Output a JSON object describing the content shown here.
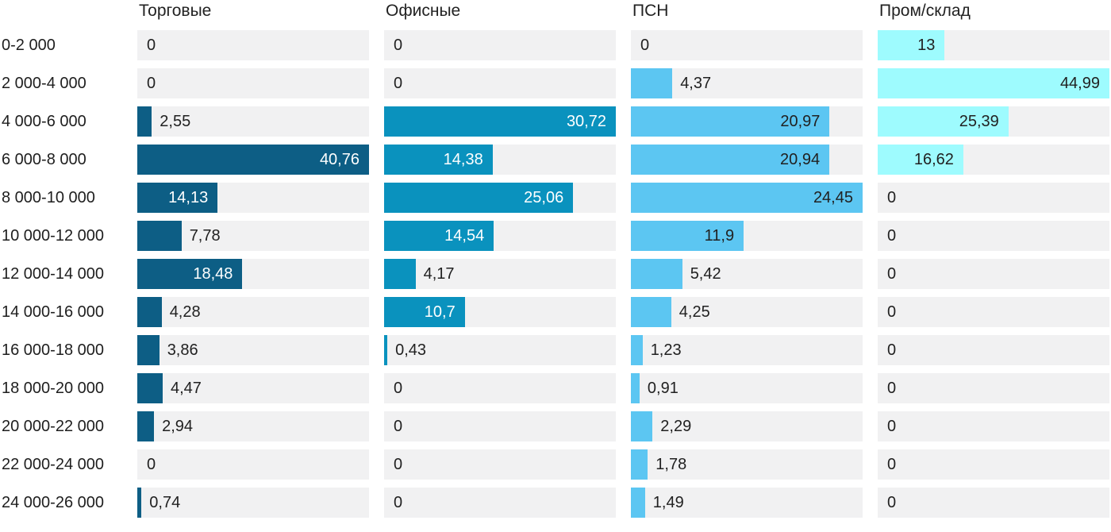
{
  "chart_data": {
    "type": "bar",
    "orientation": "horizontal",
    "value_scaling": "per_column_max",
    "decimal_separator": ",",
    "grid": "off",
    "legend_position": "column-headers-top",
    "track_color": "#f1f1f2",
    "outside_label_color": "#212121",
    "categories": [
      "0-2 000",
      "2 000-4 000",
      "4 000-6 000",
      "6 000-8 000",
      "8 000-10 000",
      "10 000-12 000",
      "12 000-14 000",
      "14 000-16 000",
      "16 000-18 000",
      "18 000-20 000",
      "20 000-22 000",
      "22 000-24 000",
      "24 000-26 000"
    ],
    "series": [
      {
        "name": "Торговые",
        "color": "#0d5e85",
        "inside_label_color": "#ffffff",
        "values": [
          0,
          0,
          2.55,
          40.76,
          14.13,
          7.78,
          18.48,
          4.28,
          3.86,
          4.47,
          2.94,
          0,
          0.74
        ]
      },
      {
        "name": "Офисные",
        "color": "#0a92be",
        "inside_label_color": "#ffffff",
        "values": [
          0,
          0,
          30.72,
          14.38,
          25.06,
          14.54,
          4.17,
          10.7,
          0.43,
          0,
          0,
          0,
          0
        ]
      },
      {
        "name": "ПСН",
        "color": "#5cc6f2",
        "inside_label_color": "#212121",
        "values": [
          0,
          4.37,
          20.97,
          20.94,
          24.45,
          11.9,
          5.42,
          4.25,
          1.23,
          0.91,
          2.29,
          1.78,
          1.49
        ]
      },
      {
        "name": "Пром/склад",
        "color": "#9efbfe",
        "inside_label_color": "#212121",
        "values": [
          13,
          44.99,
          25.39,
          16.62,
          0,
          0,
          0,
          0,
          0,
          0,
          0,
          0,
          0
        ]
      }
    ]
  }
}
